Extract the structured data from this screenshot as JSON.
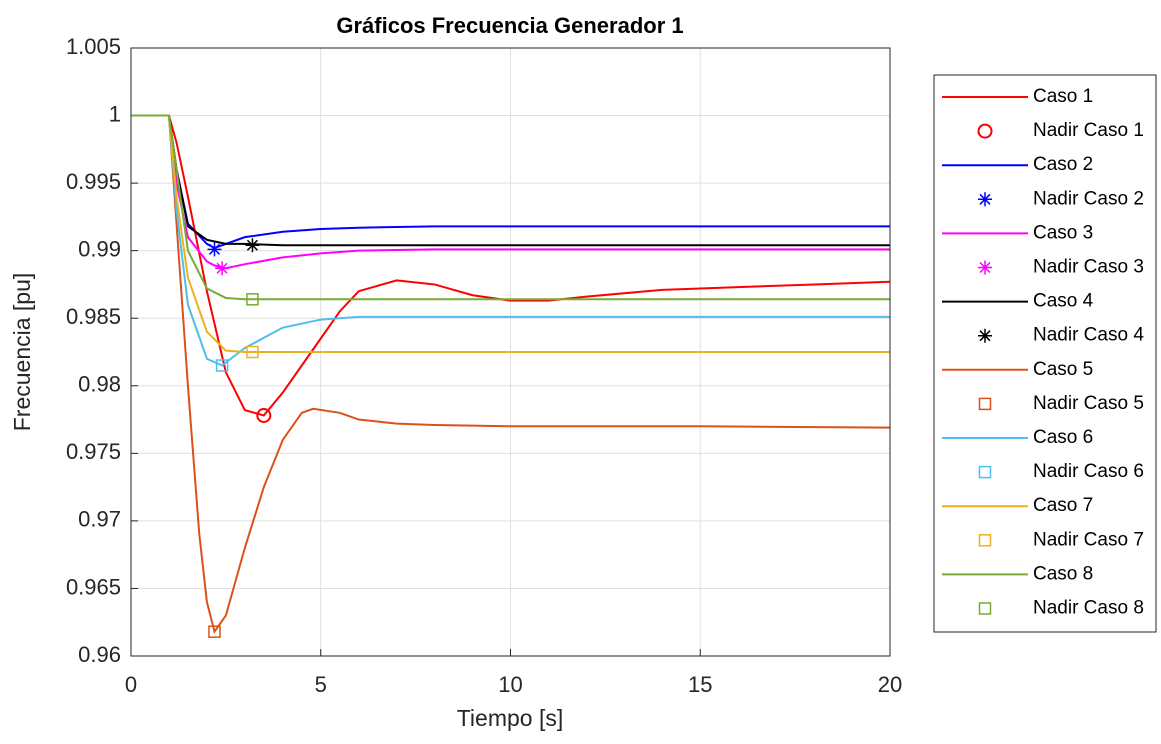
{
  "chart_data": {
    "type": "line",
    "title": "Gráficos Frecuencia Generador 1",
    "xlabel": "Tiempo [s]",
    "ylabel": "Frecuencia [pu]",
    "xlim": [
      0,
      20
    ],
    "xticks": [
      0,
      5,
      10,
      15,
      20
    ],
    "ylim": [
      0.96,
      1.005
    ],
    "yticks": [
      0.96,
      0.965,
      0.97,
      0.975,
      0.98,
      0.985,
      0.99,
      0.995,
      1,
      1.005
    ],
    "grid": true,
    "legend": "outside-right",
    "series": [
      {
        "name": "Caso 1",
        "color": "#ff0000",
        "x": [
          0,
          1,
          1.2,
          1.5,
          2,
          2.5,
          3,
          3.5,
          4,
          4.5,
          5,
          5.5,
          6,
          7,
          8,
          9,
          10,
          11,
          12,
          14,
          16,
          18,
          20
        ],
        "values": [
          1,
          1,
          0.998,
          0.994,
          0.987,
          0.981,
          0.9782,
          0.9778,
          0.9795,
          0.9815,
          0.9835,
          0.9855,
          0.987,
          0.9878,
          0.9875,
          0.9867,
          0.9863,
          0.9863,
          0.9866,
          0.9871,
          0.9873,
          0.9875,
          0.9877
        ]
      },
      {
        "name": "Nadir Caso 1",
        "color": "#ff0000",
        "marker": "o",
        "x": [
          3.5
        ],
        "values": [
          0.9778
        ]
      },
      {
        "name": "Caso 2",
        "color": "#0000ff",
        "x": [
          0,
          1,
          1.2,
          1.5,
          2,
          2.2,
          2.5,
          3,
          4,
          5,
          6,
          8,
          10,
          15,
          20
        ],
        "values": [
          1,
          1,
          0.996,
          0.992,
          0.9905,
          0.9902,
          0.9905,
          0.991,
          0.9914,
          0.9916,
          0.9917,
          0.9918,
          0.9918,
          0.9918,
          0.9918
        ]
      },
      {
        "name": "Nadir Caso 2",
        "color": "#0000ff",
        "marker": "*",
        "x": [
          2.2
        ],
        "values": [
          0.9901
        ]
      },
      {
        "name": "Caso 3",
        "color": "#ff00ff",
        "x": [
          0,
          1,
          1.2,
          1.5,
          2,
          2.2,
          2.5,
          3,
          4,
          5,
          6,
          8,
          10,
          15,
          20
        ],
        "values": [
          1,
          1,
          0.995,
          0.991,
          0.9892,
          0.9889,
          0.9887,
          0.989,
          0.9895,
          0.9898,
          0.99,
          0.9901,
          0.9901,
          0.9901,
          0.9901
        ]
      },
      {
        "name": "Nadir Caso 3",
        "color": "#ff00ff",
        "marker": "*",
        "x": [
          2.4
        ],
        "values": [
          0.9887
        ]
      },
      {
        "name": "Caso 4",
        "color": "#000000",
        "x": [
          0,
          1,
          1.2,
          1.5,
          2,
          2.5,
          3,
          4,
          6,
          10,
          20
        ],
        "values": [
          1,
          1,
          0.996,
          0.9918,
          0.9908,
          0.9905,
          0.9905,
          0.9904,
          0.9904,
          0.9904,
          0.9904
        ]
      },
      {
        "name": "Nadir Caso 4",
        "color": "#000000",
        "marker": "*",
        "x": [
          3.2
        ],
        "values": [
          0.9904
        ]
      },
      {
        "name": "Caso 5",
        "color": "#d95319",
        "x": [
          0,
          1,
          1.2,
          1.5,
          1.8,
          2,
          2.2,
          2.5,
          3,
          3.5,
          4,
          4.5,
          4.8,
          5.5,
          6,
          7,
          8,
          10,
          15,
          20
        ],
        "values": [
          1,
          1,
          0.992,
          0.98,
          0.969,
          0.964,
          0.9618,
          0.963,
          0.968,
          0.9725,
          0.976,
          0.978,
          0.9783,
          0.978,
          0.9775,
          0.9772,
          0.9771,
          0.977,
          0.977,
          0.9769
        ]
      },
      {
        "name": "Nadir Caso 5",
        "color": "#d95319",
        "marker": "s",
        "x": [
          2.2
        ],
        "values": [
          0.9618
        ]
      },
      {
        "name": "Caso 6",
        "color": "#4dbeee",
        "x": [
          0,
          1,
          1.2,
          1.5,
          2,
          2.4,
          3,
          4,
          5,
          6,
          8,
          10,
          20
        ],
        "values": [
          1,
          1,
          0.993,
          0.986,
          0.982,
          0.9815,
          0.9828,
          0.9843,
          0.9849,
          0.9851,
          0.9851,
          0.9851,
          0.9851
        ]
      },
      {
        "name": "Nadir Caso 6",
        "color": "#4dbeee",
        "marker": "s",
        "x": [
          2.4
        ],
        "values": [
          0.9815
        ]
      },
      {
        "name": "Caso 7",
        "color": "#edb120",
        "x": [
          0,
          1,
          1.2,
          1.5,
          2,
          2.5,
          3,
          4,
          20
        ],
        "values": [
          1,
          1,
          0.994,
          0.988,
          0.984,
          0.9826,
          0.9825,
          0.9825,
          0.9825
        ]
      },
      {
        "name": "Nadir Caso 7",
        "color": "#edb120",
        "marker": "s",
        "x": [
          3.2
        ],
        "values": [
          0.9825
        ]
      },
      {
        "name": "Caso 8",
        "color": "#77ac30",
        "x": [
          0,
          1,
          1.2,
          1.5,
          2,
          2.5,
          3,
          20
        ],
        "values": [
          1,
          1,
          0.996,
          0.99,
          0.9872,
          0.9865,
          0.9864,
          0.9864
        ]
      },
      {
        "name": "Nadir Caso 8",
        "color": "#77ac30",
        "marker": "s",
        "x": [
          3.2
        ],
        "values": [
          0.9864
        ]
      }
    ]
  }
}
